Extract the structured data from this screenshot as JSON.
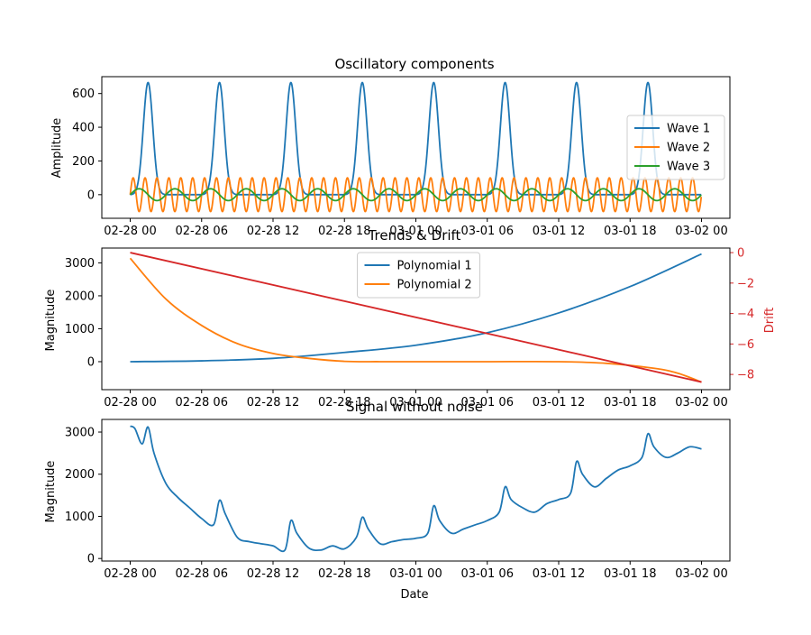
{
  "chart_data": [
    {
      "type": "line",
      "title": "Oscillatory components",
      "xlabel": "",
      "ylabel": "Amplitude",
      "x_range": [
        "2025-02-28 00:00",
        "2025-03-02 00:00"
      ],
      "xtick_labels": [
        "02-28 00",
        "02-28 06",
        "02-28 12",
        "02-28 18",
        "03-01 00",
        "03-01 06",
        "03-01 12",
        "03-01 18",
        "03-02 00"
      ],
      "ylim": [
        -140,
        700
      ],
      "yticks": [
        0,
        200,
        400,
        600
      ],
      "legend_location": "right",
      "series": [
        {
          "name": "Wave 1",
          "color": "#1f77b4",
          "model": "peaks",
          "peak_hours": [
            1.5,
            7.5,
            13.5,
            19.5,
            25.5,
            31.5,
            37.5,
            43.5
          ],
          "peak_value": 665,
          "peak_width_hours": 0.4
        },
        {
          "name": "Wave 2",
          "color": "#ff7f0e",
          "model": "sine",
          "amplitude": 100,
          "period_hours": 1.0
        },
        {
          "name": "Wave 3",
          "color": "#2ca02c",
          "model": "sine",
          "amplitude": 35,
          "period_hours": 3.0
        }
      ]
    },
    {
      "type": "line",
      "title": "Trends & Drift",
      "xlabel": "",
      "ylabel": "Magnitude",
      "ylabel_right": "Drift",
      "x_range": [
        "2025-02-28 00:00",
        "2025-03-02 00:00"
      ],
      "xtick_labels": [
        "02-28 00",
        "02-28 06",
        "02-28 12",
        "02-28 18",
        "03-01 00",
        "03-01 06",
        "03-01 12",
        "03-01 18",
        "03-02 00"
      ],
      "ylim": [
        -850,
        3450
      ],
      "yticks": [
        0,
        1000,
        2000,
        3000
      ],
      "ylim_right": [
        -9.0,
        0.3
      ],
      "yticks_right": [
        0,
        -2,
        -4,
        -6,
        -8
      ],
      "legend_location": "upper center",
      "series": [
        {
          "name": "Polynomial 1",
          "color": "#1f77b4",
          "x_hours": [
            0,
            6,
            12,
            18,
            24,
            30,
            36,
            42,
            48
          ],
          "values": [
            0,
            25,
            100,
            280,
            500,
            880,
            1480,
            2280,
            3270
          ]
        },
        {
          "name": "Polynomial 2",
          "color": "#ff7f0e",
          "x_hours": [
            0,
            3,
            6,
            9,
            12,
            15,
            18,
            21,
            24,
            30,
            36,
            40,
            44,
            46,
            48
          ],
          "values": [
            3140,
            1900,
            1100,
            550,
            250,
            100,
            10,
            0,
            0,
            0,
            0,
            -50,
            -200,
            -350,
            -620
          ]
        },
        {
          "name": "",
          "color": "#d62728",
          "axis": "right",
          "x_hours": [
            0,
            48
          ],
          "values": [
            0,
            -8.5
          ]
        }
      ]
    },
    {
      "type": "line",
      "title": "Signal without noise",
      "xlabel": "Date",
      "ylabel": "Magnitude",
      "x_range": [
        "2025-02-28 00:00",
        "2025-03-02 00:00"
      ],
      "xtick_labels": [
        "02-28 00",
        "02-28 06",
        "02-28 12",
        "02-28 18",
        "03-01 00",
        "03-01 06",
        "03-01 12",
        "03-01 18",
        "03-02 00"
      ],
      "ylim": [
        -60,
        3300
      ],
      "yticks": [
        0,
        1000,
        2000,
        3000
      ],
      "series": [
        {
          "name": "",
          "color": "#1f77b4",
          "x_hours": [
            0,
            0.4,
            1.0,
            1.5,
            2.0,
            3.0,
            4.0,
            5.0,
            6.0,
            7.0,
            7.5,
            8.0,
            9.0,
            10.0,
            11.0,
            12.0,
            13.0,
            13.5,
            14.0,
            15.0,
            16.0,
            17.0,
            18.0,
            19.0,
            19.5,
            20.0,
            21.0,
            22.0,
            23.0,
            24.0,
            25.0,
            25.5,
            26.0,
            27.0,
            28.0,
            29.0,
            30.0,
            31.0,
            31.5,
            32.0,
            33.0,
            34.0,
            35.0,
            36.0,
            37.0,
            37.5,
            38.0,
            39.0,
            40.0,
            41.0,
            42.0,
            43.0,
            43.5,
            44.0,
            45.0,
            46.0,
            47.0,
            48.0
          ],
          "values": [
            3140,
            3080,
            2720,
            3120,
            2500,
            1780,
            1450,
            1200,
            950,
            800,
            1380,
            1050,
            500,
            400,
            350,
            300,
            200,
            900,
            600,
            250,
            200,
            300,
            230,
            500,
            980,
            700,
            350,
            400,
            450,
            480,
            600,
            1250,
            900,
            600,
            700,
            800,
            900,
            1100,
            1700,
            1400,
            1200,
            1100,
            1300,
            1400,
            1550,
            2300,
            2000,
            1700,
            1900,
            2100,
            2200,
            2400,
            2960,
            2650,
            2400,
            2500,
            2650,
            2600
          ]
        }
      ]
    }
  ]
}
